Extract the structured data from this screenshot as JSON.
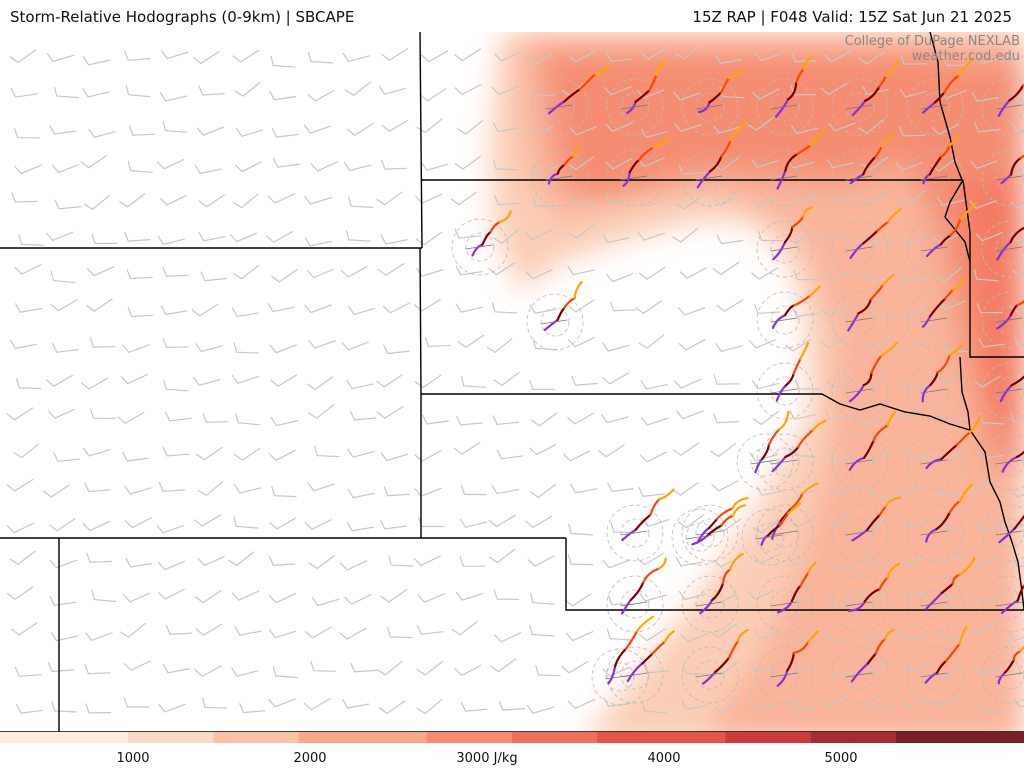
{
  "header": {
    "title_left": "Storm-Relative Hodographs (0-9km) | SBCAPE",
    "title_right": "15Z RAP | F048 Valid: 15Z Sat Jun 21 2025"
  },
  "credit": {
    "line1": "College of DuPage NEXLAB",
    "line2": "weather.cod.edu"
  },
  "colorbar": {
    "min": 0,
    "max": 6000,
    "units": "J/kg",
    "ticks": [
      {
        "value": 1000,
        "label": "1000"
      },
      {
        "value": 2000,
        "label": "2000"
      },
      {
        "value": 3000,
        "label": "3000 J/kg"
      },
      {
        "value": 4000,
        "label": "4000"
      },
      {
        "value": 5000,
        "label": "5000"
      }
    ],
    "colors": [
      "#fdece2",
      "#fcd9c6",
      "#fbc2a8",
      "#f9a88a",
      "#f78c70",
      "#f2705a",
      "#e55349",
      "#cc3a3c",
      "#a62b34",
      "#7a1f2a"
    ]
  },
  "legend_colors": {
    "hodo_0_1km": "#8a2be2",
    "hodo_1_3km": "#7a0000",
    "hodo_3_6km": "#ff4500",
    "hodo_6_9km": "#ffa500",
    "barb": "#bbbbbb",
    "border": "#000000"
  }
}
